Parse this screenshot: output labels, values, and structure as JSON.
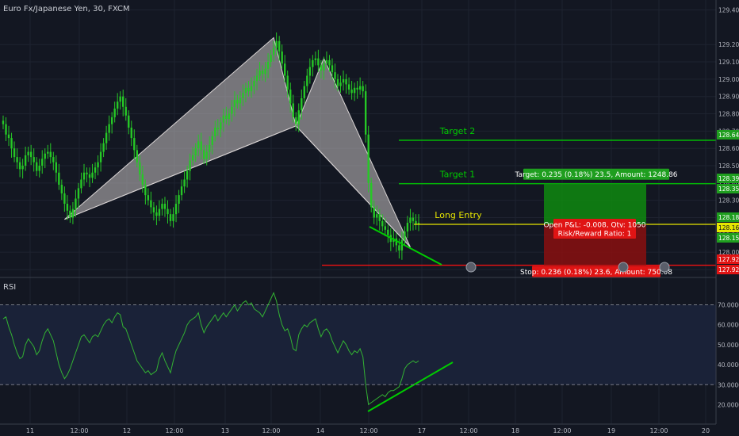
{
  "header": {
    "symbol_title": "Euro Fx/Japanese Yen, 30, FXCM"
  },
  "rsi_panel": {
    "label": "RSI"
  },
  "colors": {
    "background": "#131722",
    "candle_up": "#26c826",
    "target_line": "#00cc00",
    "entry_line": "#e6e600",
    "stop_line": "#ee1111",
    "pattern_fill": "#c8c3c3",
    "rsi_line": "#33b233",
    "rsi_band": "#1a2238"
  },
  "chart_data": [
    {
      "type": "candlestick",
      "title": "Euro Fx/Japanese Yen, 30, FXCM",
      "ylim": [
        127.9,
        129.43
      ],
      "y_ticks": [
        "129.400",
        "129.200",
        "129.100",
        "129.000",
        "128.900",
        "128.800",
        "128.700",
        "128.600",
        "128.500",
        "128.400",
        "128.300",
        "128.200",
        "128.100",
        "128.000",
        "127.900"
      ],
      "x_ticks": [
        "11",
        "12:00",
        "12",
        "12:00",
        "13",
        "12:00",
        "14",
        "12:00",
        "17",
        "12:00",
        "18",
        "12:00",
        "19",
        "12:00",
        "20"
      ],
      "price_tags": [
        {
          "text": "128.647",
          "value": 128.647,
          "kind": "target"
        },
        {
          "text": "128.396",
          "value": 128.396,
          "kind": "target"
        },
        {
          "text": "128.358",
          "value": 128.358,
          "kind": "target"
        },
        {
          "text": "128.181",
          "value": 128.181,
          "kind": "target"
        },
        {
          "text": "128.161",
          "value": 128.161,
          "kind": "entry"
        },
        {
          "text": "128.153",
          "value": 128.153,
          "kind": "target"
        },
        {
          "text": "127.925",
          "value": 127.925,
          "kind": "stop"
        },
        {
          "text": "127.924",
          "value": 127.924,
          "kind": "stop"
        }
      ],
      "levels": [
        {
          "label": "Target 2",
          "value": 128.647,
          "kind": "target"
        },
        {
          "label": "Target 1",
          "value": 128.396,
          "kind": "target"
        },
        {
          "label": "Long Entry",
          "value": 128.161,
          "kind": "entry"
        },
        {
          "label": "",
          "value": 127.925,
          "kind": "stop"
        }
      ],
      "pattern_points": [
        {
          "x": "Jun 11 20:00",
          "y": 128.19
        },
        {
          "x": "Jun 13 12:00",
          "y": 129.24
        },
        {
          "x": "Jun 13 22:00",
          "y": 128.73
        },
        {
          "x": "Jun 14 06:00",
          "y": 129.12
        },
        {
          "x": "Jun 16 22:00",
          "y": 128.03
        }
      ],
      "position": {
        "target_text": "Target: 0.235 (0.18%) 23.5, Amount: 1248.86",
        "open_pl_text": "Open P&L: -0.008, Qty: 1050",
        "risk_reward_text": "Risk/Reward Ratio: 1",
        "stop_text": "Stop: 0.236 (0.18%) 23.6, Amount: 750.08",
        "entry": 128.161,
        "target": 128.396,
        "stop": 127.925
      },
      "series": [
        {
          "name": "",
          "ohlc_close": [
            128.74,
            128.68,
            128.66,
            128.6,
            128.55,
            128.52,
            128.48,
            128.5,
            128.56,
            128.58,
            128.55,
            128.52,
            128.47,
            128.5,
            128.54,
            128.57,
            128.58,
            128.55,
            128.52,
            128.46,
            128.39,
            128.34,
            128.28,
            128.24,
            128.2,
            128.25,
            128.31,
            128.37,
            128.42,
            128.46,
            128.45,
            128.43,
            128.46,
            128.49,
            128.52,
            128.58,
            128.63,
            128.69,
            128.74,
            128.78,
            128.83,
            128.87,
            128.9,
            128.84,
            128.79,
            128.72,
            128.66,
            128.59,
            128.52,
            128.45,
            128.39,
            128.33,
            128.3,
            128.26,
            128.23,
            128.21,
            128.25,
            128.28,
            128.25,
            128.22,
            128.18,
            128.22,
            128.28,
            128.33,
            128.38,
            128.42,
            128.47,
            128.53,
            128.56,
            128.6,
            128.64,
            128.59,
            128.54,
            128.58,
            128.62,
            128.67,
            128.72,
            128.71,
            128.75,
            128.79,
            128.77,
            128.8,
            128.84,
            128.88,
            128.86,
            128.89,
            128.92,
            128.95,
            128.93,
            128.96,
            128.99,
            129.02,
            129.05,
            129.03,
            129.06,
            129.1,
            129.14,
            129.18,
            129.22,
            129.16,
            129.09,
            129.02,
            128.94,
            128.86,
            128.78,
            128.74,
            128.82,
            128.89,
            128.96,
            129.02,
            129.07,
            129.11,
            129.12,
            129.08,
            129.05,
            129.09,
            129.11,
            129.08,
            129.04,
            129.0,
            128.96,
            128.98,
            129.0,
            128.97,
            128.94,
            128.92,
            128.95,
            128.94,
            128.96,
            128.93,
            128.68,
            128.4,
            128.26,
            128.2,
            128.22,
            128.18,
            128.15,
            128.13,
            128.1,
            128.06,
            128.08,
            128.04,
            128.01,
            128.07,
            128.12,
            128.17,
            128.2,
            128.18,
            128.16,
            128.17
          ]
        }
      ]
    },
    {
      "type": "line",
      "title": "RSI",
      "ylim": [
        17,
        73
      ],
      "y_ticks": [
        "70.0000",
        "60.0000",
        "50.0000",
        "40.0000",
        "30.0000",
        "20.0000"
      ],
      "bands": [
        30,
        70
      ],
      "series": [
        {
          "name": "",
          "values": [
            63,
            64,
            59,
            55,
            50,
            46,
            43,
            44,
            50,
            53,
            51,
            49,
            45,
            47,
            52,
            56,
            58,
            55,
            52,
            46,
            40,
            36,
            33,
            35,
            38,
            42,
            46,
            50,
            54,
            55,
            53,
            51,
            54,
            55,
            54,
            57,
            60,
            62,
            63,
            61,
            64,
            66,
            65,
            59,
            58,
            54,
            50,
            46,
            42,
            40,
            38,
            36,
            37,
            35,
            36,
            37,
            43,
            46,
            42,
            39,
            36,
            42,
            47,
            50,
            53,
            56,
            60,
            62,
            63,
            64,
            66,
            60,
            56,
            59,
            61,
            63,
            65,
            62,
            64,
            66,
            64,
            66,
            68,
            70,
            67,
            69,
            71,
            72,
            70,
            71,
            68,
            67,
            66,
            64,
            67,
            70,
            73,
            76,
            72,
            65,
            60,
            57,
            58,
            54,
            48,
            47,
            55,
            58,
            60,
            59,
            61,
            62,
            63,
            58,
            54,
            57,
            58,
            56,
            52,
            49,
            46,
            49,
            52,
            50,
            47,
            45,
            47,
            46,
            48,
            44,
            30,
            20,
            21,
            22,
            23,
            24,
            25,
            24,
            26,
            27,
            27,
            28,
            29,
            33,
            38,
            40,
            41,
            42,
            41,
            42
          ]
        }
      ]
    }
  ]
}
